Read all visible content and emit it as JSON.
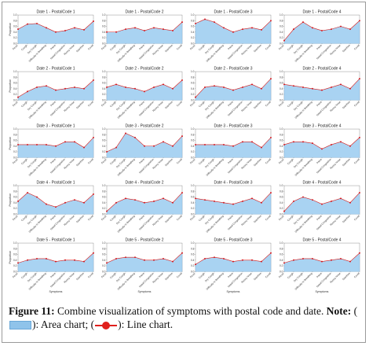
{
  "colors": {
    "area_fill": "#a9d3f2",
    "area_edge": "#6aa8d8",
    "line": "#e0201c",
    "marker": "#d4141a"
  },
  "chart_data": {
    "type": "area",
    "x_categories": [
      "Fever",
      "Cough",
      "Dry Cough",
      "Difficulty in Breathing",
      "Pains",
      "Nasal Congestion",
      "Runny Nose",
      "Diarrhea",
      "Covid"
    ],
    "xlabel": "Symptoms",
    "ylabel": "Proportion",
    "yticks": [
      "0.0",
      "0.2",
      "0.4",
      "0.6",
      "0.8",
      "1.0"
    ],
    "ylim": [
      0,
      1
    ],
    "panels": [
      {
        "title": "Date 1 - PostalCode 1",
        "values": [
          0.5,
          0.68,
          0.7,
          0.55,
          0.4,
          0.45,
          0.55,
          0.48,
          0.78
        ]
      },
      {
        "title": "Date 1 - PostalCode 2",
        "values": [
          0.4,
          0.4,
          0.5,
          0.55,
          0.45,
          0.55,
          0.5,
          0.45,
          0.75
        ]
      },
      {
        "title": "Date 1 - PostalCode 3",
        "values": [
          0.7,
          0.85,
          0.75,
          0.55,
          0.4,
          0.5,
          0.55,
          0.48,
          0.8
        ]
      },
      {
        "title": "Date 1 - PostalCode 4",
        "values": [
          0.1,
          0.5,
          0.75,
          0.55,
          0.45,
          0.5,
          0.6,
          0.5,
          0.8
        ]
      },
      {
        "title": "Date 2 - PostalCode 1",
        "values": [
          0.1,
          0.3,
          0.45,
          0.5,
          0.35,
          0.4,
          0.45,
          0.4,
          0.7
        ]
      },
      {
        "title": "Date 2 - PostalCode 2",
        "values": [
          0.45,
          0.55,
          0.45,
          0.4,
          0.3,
          0.45,
          0.55,
          0.4,
          0.7
        ]
      },
      {
        "title": "Date 2 - PostalCode 3",
        "values": [
          0.1,
          0.45,
          0.5,
          0.45,
          0.35,
          0.45,
          0.55,
          0.4,
          0.75
        ]
      },
      {
        "title": "Date 2 - PostalCode 4",
        "values": [
          0.55,
          0.5,
          0.45,
          0.4,
          0.35,
          0.45,
          0.55,
          0.4,
          0.75
        ]
      },
      {
        "title": "Date 3 - PostalCode 1",
        "values": [
          0.45,
          0.45,
          0.45,
          0.45,
          0.4,
          0.55,
          0.55,
          0.35,
          0.7
        ]
      },
      {
        "title": "Date 3 - PostalCode 2",
        "values": [
          0.2,
          0.35,
          0.85,
          0.7,
          0.4,
          0.4,
          0.55,
          0.4,
          0.75
        ]
      },
      {
        "title": "Date 3 - PostalCode 3",
        "values": [
          0.45,
          0.45,
          0.45,
          0.45,
          0.4,
          0.55,
          0.55,
          0.35,
          0.7
        ]
      },
      {
        "title": "Date 3 - PostalCode 4",
        "values": [
          0.45,
          0.55,
          0.55,
          0.5,
          0.3,
          0.45,
          0.55,
          0.4,
          0.7
        ]
      },
      {
        "title": "Date 4 - PostalCode 1",
        "values": [
          0.45,
          0.75,
          0.6,
          0.35,
          0.25,
          0.4,
          0.5,
          0.4,
          0.7
        ]
      },
      {
        "title": "Date 4 - PostalCode 2",
        "values": [
          0.1,
          0.4,
          0.55,
          0.5,
          0.4,
          0.45,
          0.55,
          0.4,
          0.75
        ]
      },
      {
        "title": "Date 4 - PostalCode 3",
        "values": [
          0.55,
          0.5,
          0.45,
          0.4,
          0.35,
          0.45,
          0.55,
          0.4,
          0.75
        ]
      },
      {
        "title": "Date 4 - PostalCode 4",
        "values": [
          0.1,
          0.45,
          0.6,
          0.5,
          0.35,
          0.45,
          0.55,
          0.4,
          0.75
        ]
      },
      {
        "title": "Date 5 - PostalCode 1",
        "values": [
          0.3,
          0.4,
          0.45,
          0.45,
          0.35,
          0.4,
          0.4,
          0.35,
          0.65
        ]
      },
      {
        "title": "Date 5 - PostalCode 2",
        "values": [
          0.3,
          0.45,
          0.5,
          0.5,
          0.4,
          0.4,
          0.45,
          0.35,
          0.65
        ]
      },
      {
        "title": "Date 5 - PostalCode 3",
        "values": [
          0.25,
          0.45,
          0.5,
          0.45,
          0.35,
          0.4,
          0.4,
          0.35,
          0.65
        ]
      },
      {
        "title": "Date 5 - PostalCode 4",
        "values": [
          0.3,
          0.4,
          0.45,
          0.45,
          0.35,
          0.4,
          0.45,
          0.35,
          0.65
        ]
      }
    ]
  },
  "caption": {
    "label": "Figure 11:",
    "text": "Combine visualization of symptoms with postal code and date.",
    "note_label": "Note:",
    "area_text": "): Area chart; (",
    "line_text": "): Line chart."
  }
}
